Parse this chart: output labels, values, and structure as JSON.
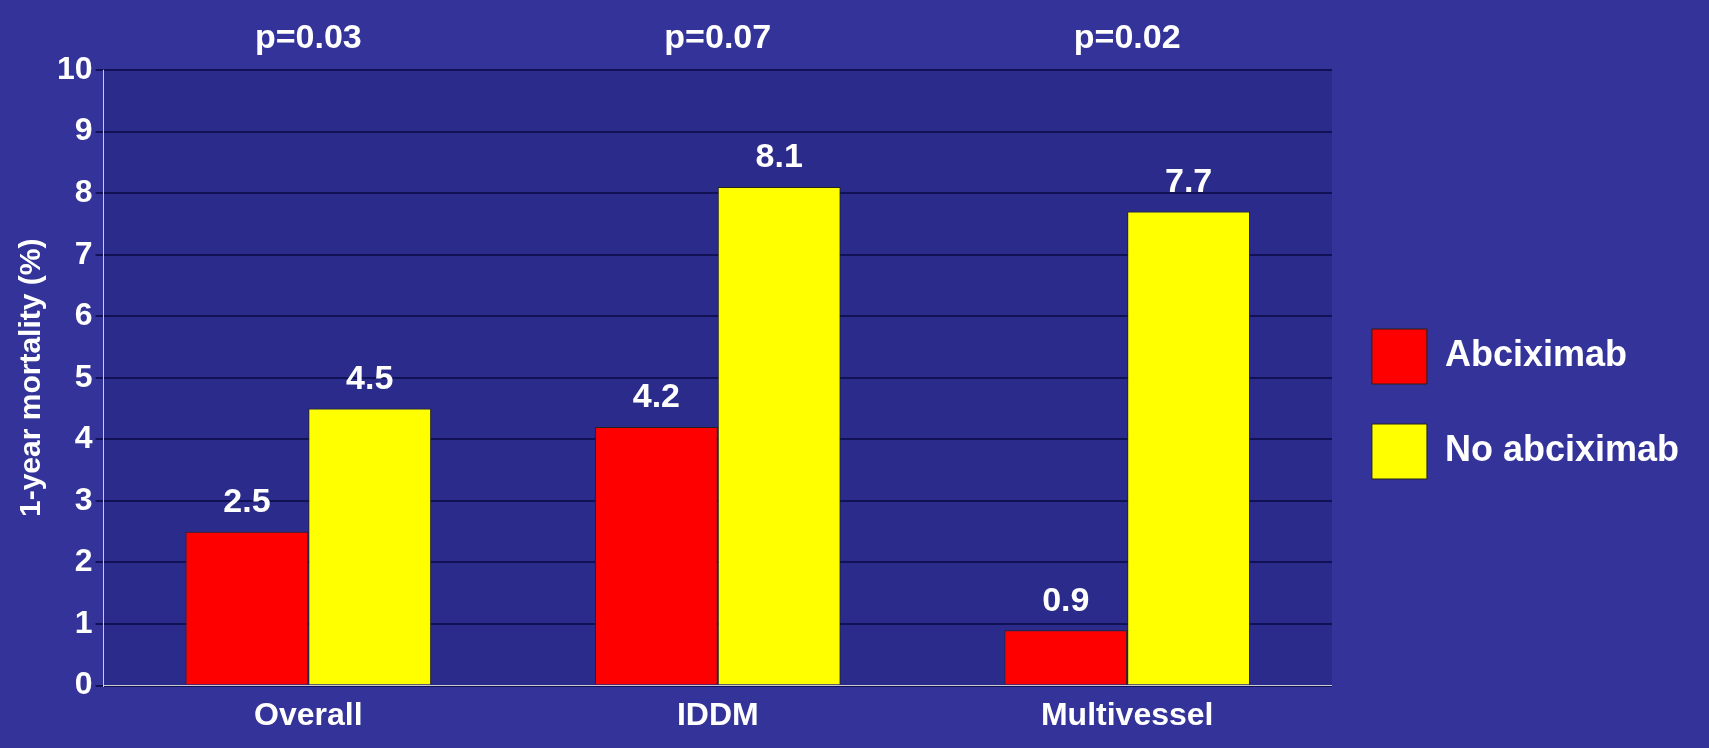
{
  "chart_data": {
    "type": "bar",
    "ylabel": "1-year mortality (%)",
    "categories": [
      "Overall",
      "IDDM",
      "Multivessel"
    ],
    "series": [
      {
        "name": "Abciximab",
        "color": "#ff0000",
        "values": [
          2.5,
          4.2,
          0.9
        ]
      },
      {
        "name": "No abciximab",
        "color": "#ffff00",
        "values": [
          4.5,
          8.1,
          7.7
        ]
      }
    ],
    "ylim": [
      0,
      10
    ],
    "yticks": [
      0,
      1,
      2,
      3,
      4,
      5,
      6,
      7,
      8,
      9,
      10
    ],
    "grid": "y",
    "legend": "right",
    "data_labels": true,
    "annotations": [
      "p=0.03",
      "p=0.07",
      "p=0.02"
    ]
  }
}
